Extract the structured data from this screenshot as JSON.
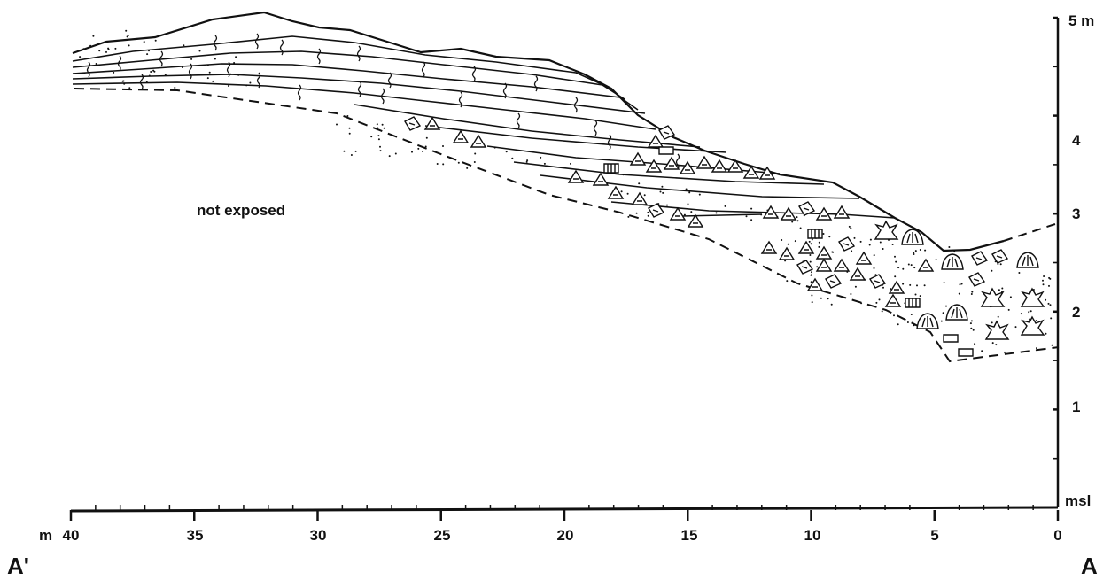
{
  "figure": {
    "region_label": "not exposed",
    "section_start_label": "A'",
    "section_end_label": "A"
  },
  "x_axis": {
    "unit_prefix": "m",
    "ticks": [
      "40",
      "35",
      "30",
      "25",
      "20",
      "15",
      "10",
      "5",
      "0"
    ],
    "values": [
      40,
      35,
      30,
      25,
      20,
      15,
      10,
      5,
      0
    ]
  },
  "y_axis": {
    "ticks": [
      "5 m",
      "4",
      "3",
      "2",
      "1",
      "msl"
    ],
    "values": [
      5,
      4,
      3,
      2,
      1,
      0
    ]
  },
  "colors": {
    "ink": "#111111",
    "paper": "#ffffff"
  }
}
